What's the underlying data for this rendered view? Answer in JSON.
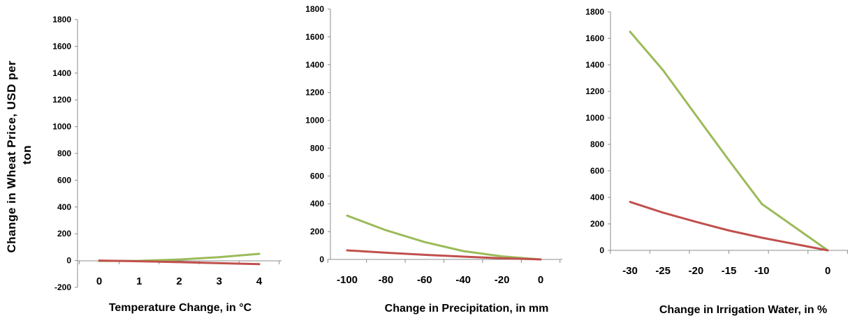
{
  "ylabel_lines": [
    "Change in Wheat Price, USD per",
    "ton"
  ],
  "series_colors": [
    "#9bbb59",
    "#c0504d"
  ],
  "chart_data": [
    {
      "type": "line",
      "xlabel": "Temperature Change, in °C",
      "ylim": [
        -200,
        1800
      ],
      "yticks": [
        -200,
        0,
        200,
        400,
        600,
        800,
        1000,
        1200,
        1400,
        1600,
        1800
      ],
      "x": [
        0,
        1,
        2,
        3,
        4
      ],
      "xtick_labels": [
        "0",
        "1",
        "2",
        "3",
        "4"
      ],
      "series": [
        {
          "color": "#9bbb59",
          "values": [
            -3,
            -2,
            8,
            25,
            50
          ]
        },
        {
          "color": "#c0504d",
          "values": [
            0,
            -5,
            -12,
            -20,
            -27
          ]
        }
      ]
    },
    {
      "type": "line",
      "xlabel": "Change in Precipitation, in mm",
      "ylim": [
        0,
        1800
      ],
      "yticks": [
        0,
        200,
        400,
        600,
        800,
        1000,
        1200,
        1400,
        1600,
        1800
      ],
      "x": [
        -100,
        -80,
        -60,
        -40,
        -20,
        0
      ],
      "xtick_labels": [
        "-100",
        "-80",
        "-60",
        "-40",
        "-20",
        "0"
      ],
      "series": [
        {
          "color": "#9bbb59",
          "values": [
            315,
            210,
            125,
            60,
            22,
            0
          ]
        },
        {
          "color": "#c0504d",
          "values": [
            65,
            48,
            33,
            20,
            8,
            0
          ]
        }
      ]
    },
    {
      "type": "line",
      "xlabel": "Change in Irrigation Water, in %",
      "ylim": [
        0,
        1800
      ],
      "yticks": [
        0,
        200,
        400,
        600,
        800,
        1000,
        1200,
        1400,
        1600,
        1800
      ],
      "x": [
        -30,
        -25,
        -20,
        -15,
        -10,
        0
      ],
      "xtick_labels": [
        "-30",
        "-25",
        "-20",
        "-15",
        "-10",
        "0"
      ],
      "series": [
        {
          "color": "#9bbb59",
          "values": [
            1650,
            1360,
            1020,
            680,
            350,
            0
          ]
        },
        {
          "color": "#c0504d",
          "values": [
            365,
            285,
            215,
            150,
            95,
            0
          ]
        }
      ]
    }
  ]
}
